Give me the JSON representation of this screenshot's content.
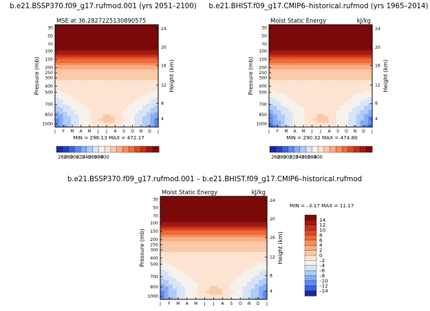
{
  "chart_data": [
    {
      "type": "heatmap",
      "title": "b.e21.BSSP370.f09_g17.rufmod.001  (yrs 2051–2100)",
      "subtitle": "MSE at 36.2827225130890575",
      "xlabel": "",
      "ylabel": "Pressure (mb)",
      "y2label": "Height (km)",
      "x_tick_labels": [
        "J",
        "F",
        "M",
        "A",
        "M",
        "J",
        "J",
        "A",
        "S",
        "O",
        "N",
        "D",
        "J"
      ],
      "y_tick_labels": [
        "30",
        "50",
        "70",
        "100",
        "150",
        "200",
        "250",
        "300",
        "400",
        "500",
        "700",
        "850",
        "1000"
      ],
      "y2_tick_labels": [
        "24",
        "20",
        "16",
        "12",
        "8",
        "4"
      ],
      "stats": "MIN = 296.13  MAX = 472.17",
      "colorbar": {
        "labels": [
          "260",
          "280",
          "300",
          "320",
          "340",
          "360",
          "380",
          "400"
        ],
        "colors": [
          "#1a2a9e",
          "#2541c7",
          "#3b63e0",
          "#5c8af0",
          "#85acf5",
          "#b1cbf7",
          "#d7e4f7",
          "#f7f1ec",
          "#fde3d2",
          "#fcc9a8",
          "#fbac83",
          "#f68c5c",
          "#ef6a3a",
          "#de4a22",
          "#c2301a",
          "#9e1a12",
          "#7a0a0a"
        ]
      }
    },
    {
      "type": "heatmap",
      "title": "b.e21.BHIST.f09_g17.CMIP6–historical.rufmod  (yrs 1965–2014)",
      "subtitle": "Moist Static Energy",
      "units": "kJ/kg",
      "xlabel": "",
      "ylabel": "Pressure (mb)",
      "y2label": "Height (km)",
      "x_tick_labels": [
        "J",
        "F",
        "M",
        "A",
        "M",
        "J",
        "J",
        "A",
        "S",
        "O",
        "N",
        "D",
        "J"
      ],
      "y_tick_labels": [
        "30",
        "50",
        "70",
        "100",
        "150",
        "200",
        "250",
        "300",
        "400",
        "500",
        "700",
        "850",
        "1000"
      ],
      "y2_tick_labels": [
        "24",
        "20",
        "16",
        "12",
        "8",
        "4"
      ],
      "stats": "MIN = 290.32  MAX = 474.80",
      "colorbar": {
        "labels": [
          "260",
          "280",
          "300",
          "320",
          "340",
          "360",
          "380",
          "400"
        ],
        "colors": [
          "#1a2a9e",
          "#2541c7",
          "#3b63e0",
          "#5c8af0",
          "#85acf5",
          "#b1cbf7",
          "#d7e4f7",
          "#f7f1ec",
          "#fde3d2",
          "#fcc9a8",
          "#fbac83",
          "#f68c5c",
          "#ef6a3a",
          "#de4a22",
          "#c2301a",
          "#9e1a12",
          "#7a0a0a"
        ]
      }
    },
    {
      "type": "heatmap",
      "title": "b.e21.BSSP370.f09_g17.rufmod.001  –  b.e21.BHIST.f09_g17.CMIP6–historical.rufmod",
      "subtitle": "Moist Static Energy",
      "units": "kJ/kg",
      "xlabel": "",
      "ylabel": "Pressure (mb)",
      "y2label": "Height (km)",
      "x_tick_labels": [
        "J",
        "F",
        "M",
        "A",
        "M",
        "J",
        "J",
        "A",
        "S",
        "O",
        "N",
        "D",
        "J"
      ],
      "y_tick_labels": [
        "30",
        "50",
        "70",
        "100",
        "150",
        "200",
        "250",
        "300",
        "400",
        "500",
        "700",
        "850",
        "1000"
      ],
      "y2_tick_labels": [
        "24",
        "20",
        "16",
        "12",
        "8",
        "4"
      ],
      "stats": "MIN =  –3.17  MAX =  11.17",
      "colorbar": {
        "labels": [
          "14",
          "12",
          "10",
          "8",
          "6",
          "4",
          "2",
          "0",
          "–2",
          "–4",
          "–6",
          "–8",
          "–10",
          "–12",
          "–14"
        ],
        "colors": [
          "#7a0a0a",
          "#9e1a12",
          "#c2301a",
          "#de4a22",
          "#ef6a3a",
          "#f68c5c",
          "#fbac83",
          "#fcc9a8",
          "#fde3d2",
          "#f7f1ec",
          "#d7e4f7",
          "#b1cbf7",
          "#85acf5",
          "#5c8af0",
          "#3b63e0",
          "#1a2a9e"
        ]
      }
    }
  ]
}
